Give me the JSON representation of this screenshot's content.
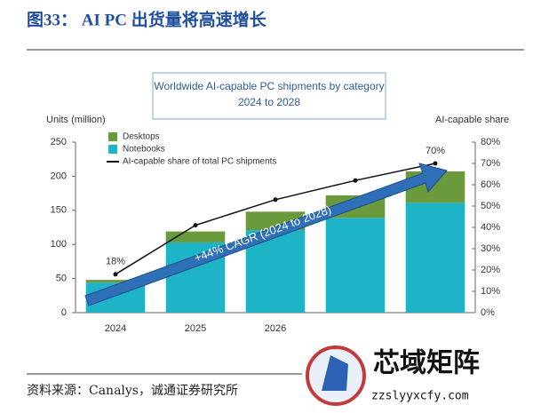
{
  "figure_title": "图33：  AI PC 出货量将高速增长",
  "source": "资料来源：Canalys，诚通证券研究所",
  "watermark": {
    "name": "芯域矩阵",
    "url": "zzslyyxcfy.com"
  },
  "chart_data": {
    "type": "stacked-bar-line",
    "title": "Worldwide AI-capable PC shipments by category",
    "subtitle": "2024 to 2028",
    "y_label": "Units (million)",
    "y2_label": "AI-capable share",
    "annotation": "+44% CAGR (2024 to 2028)",
    "categories": [
      "2024",
      "2025",
      "2026",
      null,
      null
    ],
    "series": [
      {
        "name": "Desktops",
        "color": "#6a9a3c",
        "values": [
          4,
          16,
          27,
          33,
          46
        ]
      },
      {
        "name": "Notebooks",
        "color": "#1eb4c8",
        "values": [
          44,
          103,
          121,
          139,
          161
        ]
      },
      {
        "name": "AI-capable share of total PC shipments",
        "color": "#111111",
        "axis": "y2",
        "values": [
          18,
          41,
          53,
          62,
          70
        ],
        "value_labels": [
          "18%",
          null,
          null,
          null,
          "70%"
        ]
      }
    ],
    "ylim": [
      0,
      250
    ],
    "yticks": [
      0,
      50,
      100,
      150,
      200,
      250
    ],
    "y2lim": [
      0,
      80
    ],
    "y2ticks": [
      {
        "value": 0,
        "label": "0%"
      },
      {
        "value": 10,
        "label": "10%"
      },
      {
        "value": 20,
        "label": "20%"
      },
      {
        "value": 30,
        "label": "30%"
      },
      {
        "value": 40,
        "label": "40%"
      },
      {
        "value": 50,
        "label": "50%"
      },
      {
        "value": 60,
        "label": "60%"
      },
      {
        "value": 70,
        "label": "70%"
      },
      {
        "value": 80,
        "label": "80%"
      }
    ]
  }
}
